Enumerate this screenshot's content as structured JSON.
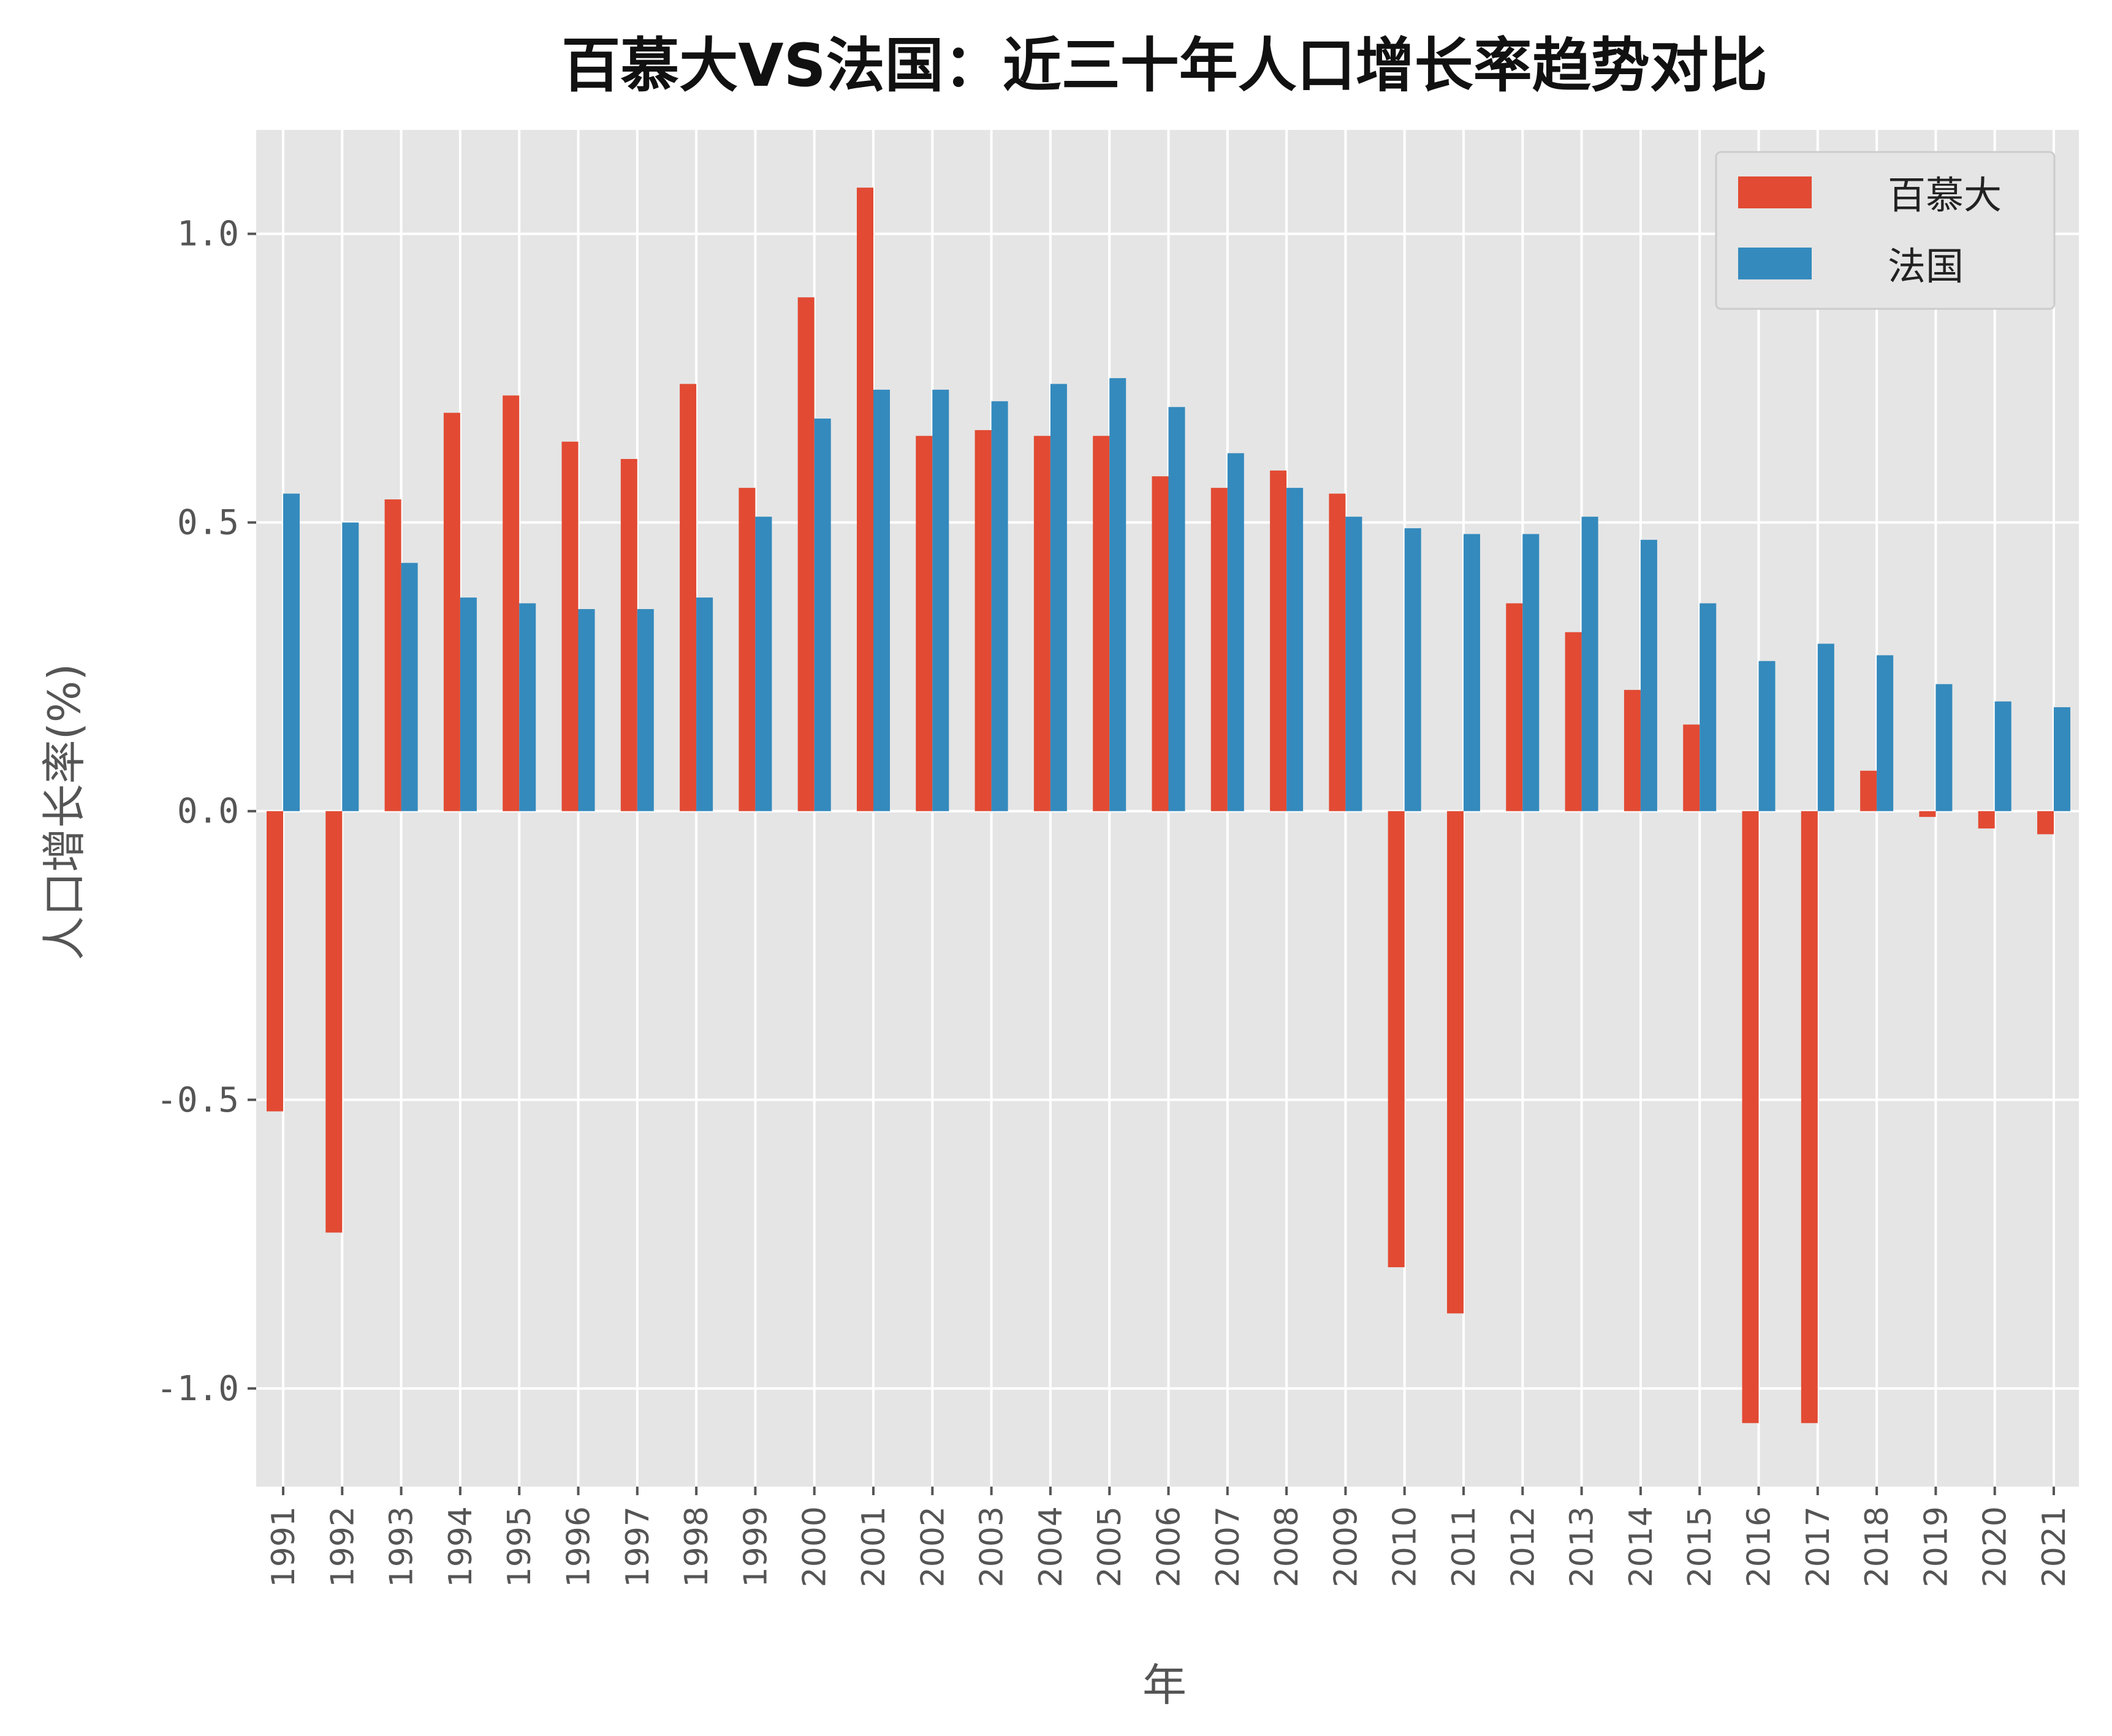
{
  "chart_data": {
    "type": "bar",
    "title": "百慕大VS法国：近三十年人口增长率趋势对比",
    "xlabel": "年",
    "ylabel": "人口增长率(%)",
    "ylim": [
      -1.17,
      1.18
    ],
    "yticks": [
      "-1.0",
      "-0.5",
      "0.0",
      "0.5",
      "1.0"
    ],
    "ytick_values": [
      -1.0,
      -0.5,
      0.0,
      0.5,
      1.0
    ],
    "grid": true,
    "legend_position": "top-right",
    "categories": [
      "1991",
      "1992",
      "1993",
      "1994",
      "1995",
      "1996",
      "1997",
      "1998",
      "1999",
      "2000",
      "2001",
      "2002",
      "2003",
      "2004",
      "2005",
      "2006",
      "2007",
      "2008",
      "2009",
      "2010",
      "2011",
      "2012",
      "2013",
      "2014",
      "2015",
      "2016",
      "2017",
      "2018",
      "2019",
      "2020",
      "2021"
    ],
    "series": [
      {
        "name": "百慕大",
        "color": "#E24A33",
        "values": [
          -0.52,
          -0.73,
          0.54,
          0.69,
          0.72,
          0.64,
          0.61,
          0.74,
          0.56,
          0.89,
          1.08,
          0.65,
          0.66,
          0.65,
          0.65,
          0.58,
          0.56,
          0.59,
          0.55,
          -0.79,
          -0.87,
          0.36,
          0.31,
          0.21,
          0.15,
          -1.06,
          -1.06,
          0.07,
          -0.01,
          -0.03,
          -0.04
        ]
      },
      {
        "name": "法国",
        "color": "#348ABD",
        "values": [
          0.55,
          0.5,
          0.43,
          0.37,
          0.36,
          0.35,
          0.35,
          0.37,
          0.51,
          0.68,
          0.73,
          0.73,
          0.71,
          0.74,
          0.75,
          0.7,
          0.62,
          0.56,
          0.51,
          0.49,
          0.48,
          0.48,
          0.51,
          0.47,
          0.36,
          0.26,
          0.29,
          0.27,
          0.22,
          0.19,
          0.18
        ]
      }
    ]
  }
}
